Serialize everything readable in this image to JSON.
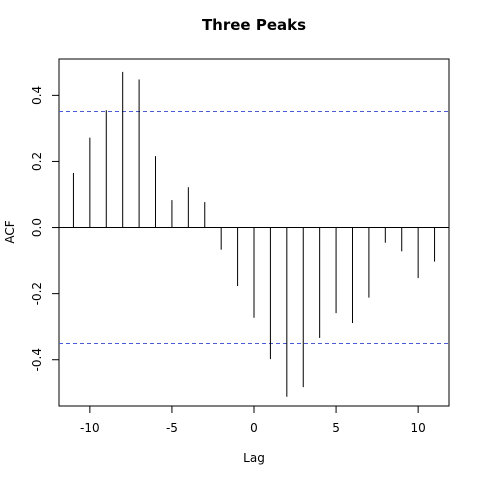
{
  "chart_data": {
    "type": "bar",
    "title": "Three Peaks",
    "xlabel": "Lag",
    "ylabel": "ACF",
    "xlim": [
      -11.88,
      11.88
    ],
    "ylim": [
      -0.54,
      0.51
    ],
    "x_ticks": [
      -10,
      -5,
      0,
      5,
      10
    ],
    "x_tick_labels": [
      "-10",
      "-5",
      "0",
      "5",
      "10"
    ],
    "y_ticks": [
      -0.4,
      -0.2,
      0.0,
      0.2,
      0.4
    ],
    "y_tick_labels": [
      "-0.4",
      "-0.2",
      "0.0",
      "0.2",
      "0.4"
    ],
    "confidence_band": [
      0.351,
      -0.351
    ],
    "band_color": "#4a5bd6",
    "stem_color": "#000000",
    "points": [
      {
        "lag": -11,
        "acf": 0.165
      },
      {
        "lag": -10,
        "acf": 0.272
      },
      {
        "lag": -9,
        "acf": 0.355
      },
      {
        "lag": -8,
        "acf": 0.471
      },
      {
        "lag": -7,
        "acf": 0.448
      },
      {
        "lag": -6,
        "acf": 0.216
      },
      {
        "lag": -5,
        "acf": 0.083
      },
      {
        "lag": -4,
        "acf": 0.122
      },
      {
        "lag": -3,
        "acf": 0.077
      },
      {
        "lag": -2,
        "acf": -0.067
      },
      {
        "lag": -1,
        "acf": -0.177
      },
      {
        "lag": 0,
        "acf": -0.273
      },
      {
        "lag": 1,
        "acf": -0.398
      },
      {
        "lag": 2,
        "acf": -0.512
      },
      {
        "lag": 3,
        "acf": -0.483
      },
      {
        "lag": 4,
        "acf": -0.334
      },
      {
        "lag": 5,
        "acf": -0.259
      },
      {
        "lag": 6,
        "acf": -0.289
      },
      {
        "lag": 7,
        "acf": -0.212
      },
      {
        "lag": 8,
        "acf": -0.046
      },
      {
        "lag": 9,
        "acf": -0.072
      },
      {
        "lag": 10,
        "acf": -0.153
      },
      {
        "lag": 11,
        "acf": -0.103
      }
    ]
  }
}
